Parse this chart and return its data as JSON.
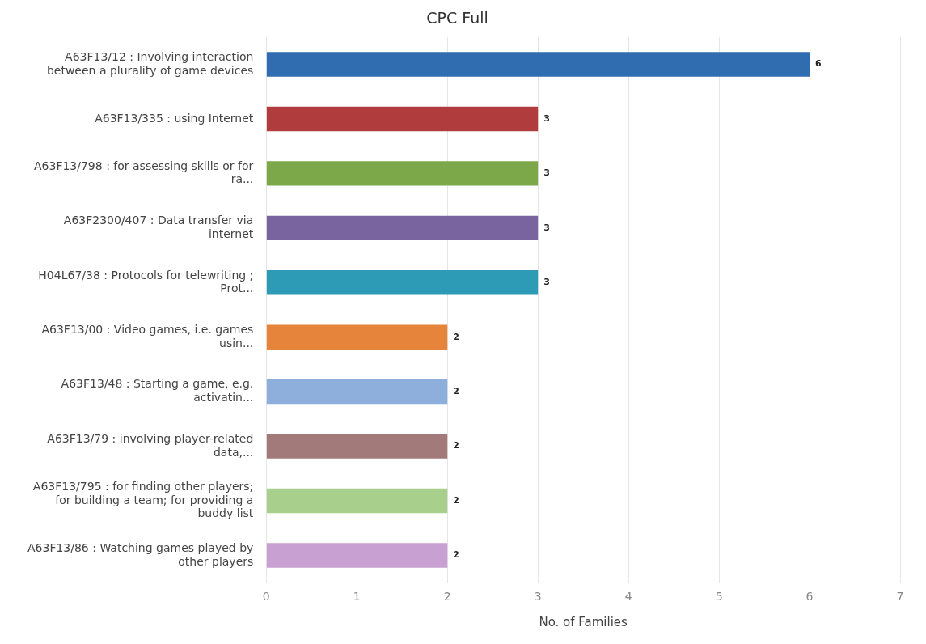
{
  "chart_data": {
    "type": "bar",
    "orientation": "horizontal",
    "title": "CPC Full",
    "xlabel": "No. of Families",
    "categories": [
      "A63F13/12 : Involving interaction between a plurality of game devices",
      "A63F13/335 : using Internet",
      "A63F13/798 : for assessing skills or for ra...",
      "A63F2300/407 : Data transfer via internet",
      "H04L67/38 : Protocols for telewriting ; Prot...",
      "A63F13/00 : Video games, i.e. games usin...",
      "A63F13/48 : Starting a game, e.g. activatin...",
      "A63F13/79 : involving player-related data,...",
      "A63F13/795 : for finding other players; for building a team; for providing a buddy list",
      "A63F13/86 : Watching games played by other players"
    ],
    "values": [
      6,
      3,
      3,
      3,
      3,
      2,
      2,
      2,
      2,
      2
    ],
    "colors": [
      "#2f6db0",
      "#b03c3e",
      "#7ca84a",
      "#7a64a0",
      "#2e9bb6",
      "#e5843a",
      "#8eaedc",
      "#a27a7a",
      "#a9cf8c",
      "#c9a0d2"
    ],
    "xlim": [
      0,
      7
    ],
    "xticks": [
      0,
      1,
      2,
      3,
      4,
      5,
      6,
      7
    ],
    "grid": "x",
    "data_labels": true,
    "legend": false
  }
}
